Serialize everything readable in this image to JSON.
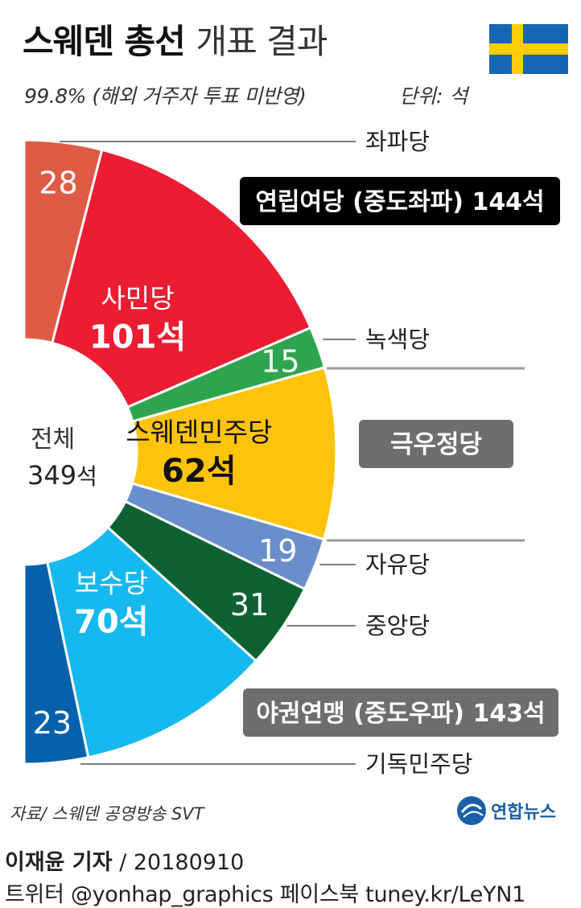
{
  "header": {
    "title_bold": "스웨덴 총선",
    "title_light": "개표 결과",
    "subtitle": "99.8% (해외 거주자 투표 미반영)",
    "unit": "단위: 석"
  },
  "flag": {
    "name": "sweden-flag",
    "blue": "#1566b3",
    "yellow": "#fecc02"
  },
  "chart_data": {
    "type": "pie",
    "variant": "half-donut",
    "total_label": "전체",
    "total_value": "349",
    "total_unit": "석",
    "slices": [
      {
        "name": "좌파당",
        "value": 28,
        "color": "#df5b45",
        "center_label": "28",
        "big": false
      },
      {
        "name": "사민당",
        "value": 101,
        "color": "#ec1c33",
        "center_label": "사민당",
        "center_value": "101석",
        "big": true
      },
      {
        "name": "녹색당",
        "value": 15,
        "color": "#2fa44f",
        "center_label": "15",
        "big": false
      },
      {
        "name": "스웨덴민주당",
        "value": 62,
        "color": "#ffc40a",
        "center_label": "스웨덴민주당",
        "center_value": "62석",
        "big": true
      },
      {
        "name": "자유당",
        "value": 19,
        "color": "#6a8ecb",
        "center_label": "19",
        "big": false
      },
      {
        "name": "중앙당",
        "value": 31,
        "color": "#0d6130",
        "center_label": "31",
        "big": false
      },
      {
        "name": "보수당",
        "value": 70,
        "color": "#16b9ee",
        "center_label": "보수당",
        "center_value": "70석",
        "big": true
      },
      {
        "name": "기독민주당",
        "value": 23,
        "color": "#0661ad",
        "center_label": "23",
        "big": false
      }
    ],
    "outside_labels": [
      "좌파당",
      "녹색당",
      "자유당",
      "중앙당",
      "기독민주당"
    ],
    "blocs": [
      {
        "label": "연립여당 (중도좌파) 144석",
        "color": "#000000"
      },
      {
        "label": "극우정당",
        "color": "#6d6e70"
      },
      {
        "label": "야권연맹 (중도우파) 143석",
        "color": "#6d6e70"
      }
    ]
  },
  "footer": {
    "source": "자료/ 스웨덴 공영방송 SVT",
    "logo_text": "연합뉴스",
    "reporter_name": "이재윤 기자",
    "reporter_date": "/ 20180910",
    "social": "트위터 @yonhap_graphics  페이스북 tuney.kr/LeYN1"
  }
}
